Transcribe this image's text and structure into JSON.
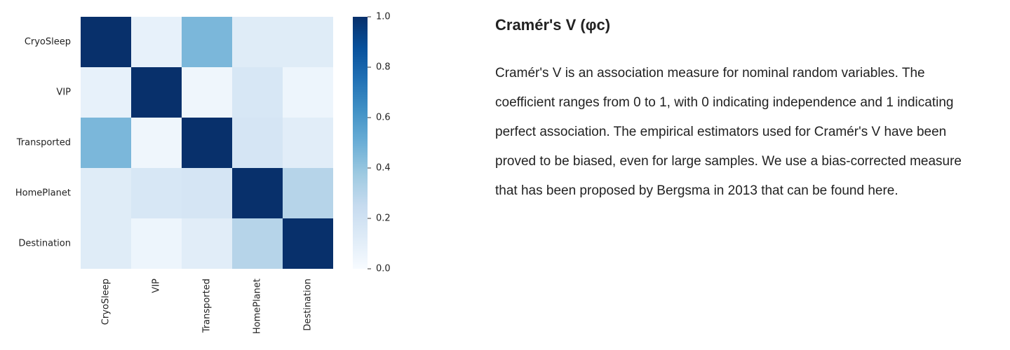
{
  "chart_data": {
    "type": "heatmap",
    "x_categories": [
      "CryoSleep",
      "VIP",
      "Transported",
      "HomePlanet",
      "Destination"
    ],
    "y_categories": [
      "CryoSleep",
      "VIP",
      "Transported",
      "HomePlanet",
      "Destination"
    ],
    "values": [
      [
        1.0,
        0.08,
        0.46,
        0.12,
        0.12
      ],
      [
        0.08,
        1.0,
        0.04,
        0.16,
        0.05
      ],
      [
        0.46,
        0.04,
        1.0,
        0.17,
        0.11
      ],
      [
        0.12,
        0.16,
        0.17,
        1.0,
        0.3
      ],
      [
        0.12,
        0.05,
        0.11,
        0.3,
        1.0
      ]
    ],
    "colormap": "Blues",
    "colorbar": {
      "range": [
        0.0,
        1.0
      ],
      "ticks": [
        0.0,
        0.2,
        0.4,
        0.6,
        0.8,
        1.0
      ],
      "tick_labels": [
        "0.0",
        "0.2",
        "0.4",
        "0.6",
        "0.8",
        "1.0"
      ]
    },
    "title": "",
    "xlabel": "",
    "ylabel": ""
  },
  "info": {
    "title": "Cramér's V (φc)",
    "text": "Cramér's V is an association measure for nominal random variables. The coefficient ranges from 0 to 1, with 0 indicating independence and 1 indicating perfect association. The empirical estimators used for Cramér's V have been proved to be biased, even for large samples. We use a bias-corrected measure that has been proposed by Bergsma in 2013 that can be found here."
  }
}
